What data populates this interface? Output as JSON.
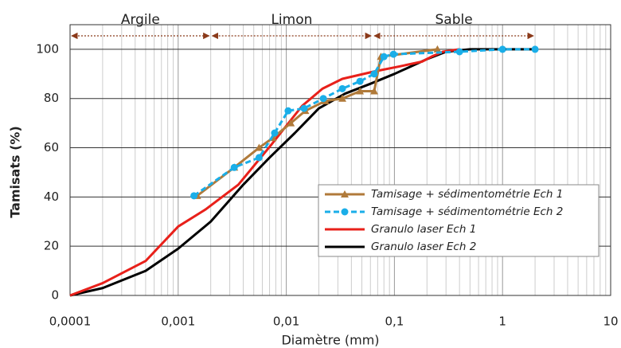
{
  "chart_data": {
    "type": "line",
    "x_label": "Diamètre (mm)",
    "y_label": "Tamisats (%)",
    "log_x": true,
    "grid": true,
    "legend": "lower right",
    "xlim": [
      0.0001,
      10
    ],
    "ylim": [
      0,
      110
    ],
    "xticks": [
      {
        "value": 0.0001,
        "label": "0,0001"
      },
      {
        "value": 0.001,
        "label": "0,001"
      },
      {
        "value": 0.01,
        "label": "0,01"
      },
      {
        "value": 0.1,
        "label": "0,1"
      },
      1,
      10
    ],
    "yticks": [
      0,
      20,
      40,
      60,
      80,
      100
    ],
    "zones": [
      {
        "label": "Argile",
        "from": 0.0001,
        "to": 0.002
      },
      {
        "label": "Limon",
        "from": 0.002,
        "to": 0.063
      },
      {
        "label": "Sable",
        "from": 0.063,
        "to": 2
      }
    ],
    "series": [
      {
        "name": "Tamisage + sédimentométrie Ech 1",
        "color": "#b07a3a",
        "marker": "triangle",
        "dashed": false,
        "x": [
          0.0015,
          0.0033,
          0.0056,
          0.0075,
          0.011,
          0.015,
          0.023,
          0.033,
          0.048,
          0.065,
          0.075,
          0.25
        ],
        "values": [
          40.5,
          52,
          60,
          64,
          70,
          75,
          79,
          80,
          83,
          83,
          97,
          100
        ]
      },
      {
        "name": "Tamisage + sédimentométrie Ech 2",
        "color": "#1aaee8",
        "marker": "circle",
        "dashed": true,
        "x": [
          0.0014,
          0.0033,
          0.0056,
          0.0078,
          0.0104,
          0.0146,
          0.022,
          0.033,
          0.048,
          0.065,
          0.08,
          0.098,
          0.4,
          1,
          2
        ],
        "values": [
          40.5,
          52,
          56,
          66,
          75,
          76,
          80,
          84,
          87,
          90,
          97,
          98,
          99,
          100,
          100
        ]
      },
      {
        "name": "Granulo laser Ech 1",
        "color": "#e8201a",
        "marker": "none",
        "dashed": false,
        "x": [
          0.0001,
          0.0002,
          0.0005,
          0.001,
          0.0018,
          0.0036,
          0.0072,
          0.014,
          0.0216,
          0.033,
          0.065,
          0.11,
          0.18,
          0.22,
          0.28,
          0.4
        ],
        "values": [
          0,
          5,
          14,
          28,
          35,
          45,
          61,
          77,
          84,
          88,
          91,
          93,
          95,
          97,
          99,
          100
        ]
      },
      {
        "name": "Granulo laser Ech 2",
        "color": "#000000",
        "marker": "none",
        "dashed": false,
        "x": [
          0.0001,
          0.0002,
          0.0005,
          0.001,
          0.002,
          0.004,
          0.007,
          0.012,
          0.02,
          0.035,
          0.06,
          0.1,
          0.2,
          0.3,
          0.5,
          2
        ],
        "values": [
          0,
          3,
          10,
          19,
          30,
          45,
          56,
          66,
          76,
          82,
          86,
          90,
          96,
          99,
          100,
          100
        ]
      }
    ]
  }
}
